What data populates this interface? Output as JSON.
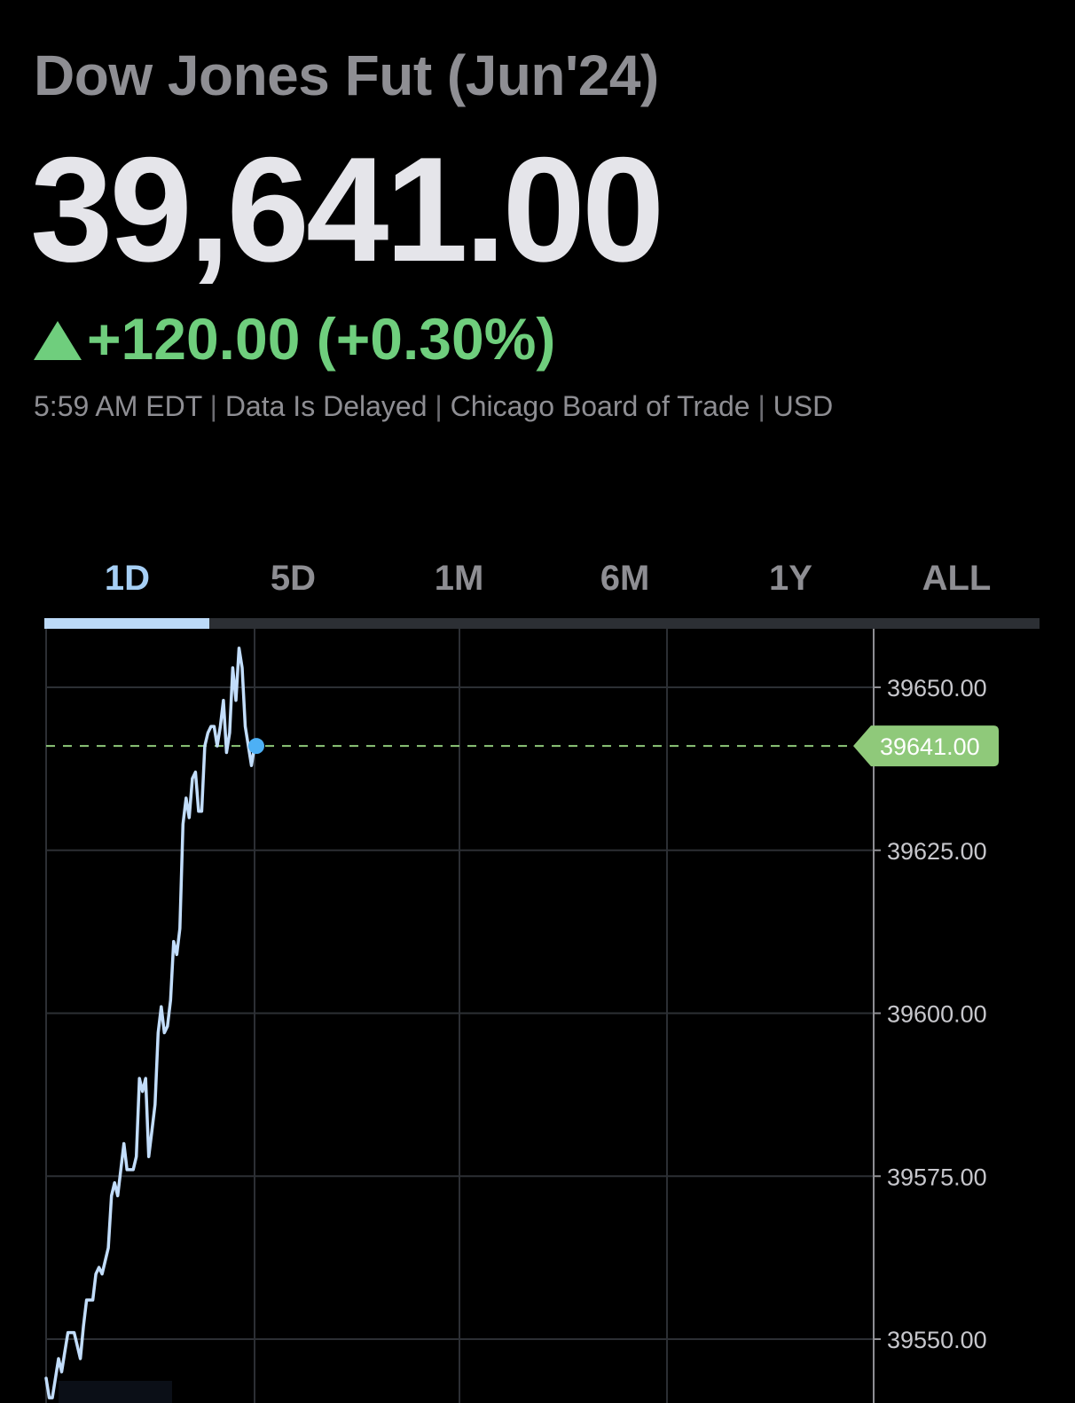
{
  "header": {
    "title": "Dow Jones Fut (Jun'24)",
    "price": "39,641.00",
    "change": "+120.00 (+0.30%)",
    "change_direction_icon": "up-triangle-icon",
    "meta": {
      "time": "5:59 AM EDT",
      "delay": "Data Is Delayed",
      "exchange": "Chicago Board of Trade",
      "currency": "USD",
      "separator": "|"
    }
  },
  "tabs": [
    {
      "label": "1D",
      "active": true
    },
    {
      "label": "5D",
      "active": false
    },
    {
      "label": "1M",
      "active": false
    },
    {
      "label": "6M",
      "active": false
    },
    {
      "label": "1Y",
      "active": false
    },
    {
      "label": "ALL",
      "active": false
    }
  ],
  "colors": {
    "background": "#000000",
    "positive": "#6fce7d",
    "line": "#c2ddfb",
    "active_tab": "#a6cff5",
    "price_tag": "#8fc97a",
    "current_dot": "#4db0f5",
    "grid": "#2c2f34"
  },
  "chart_data": {
    "type": "line",
    "series": [
      {
        "values": [
          39544,
          39541,
          39541,
          39544,
          39547,
          39545,
          39548,
          39551,
          39551,
          39551,
          39549,
          39547,
          39552,
          39556,
          39556,
          39556,
          39560,
          39561,
          39560,
          39562,
          39564,
          39572,
          39574,
          39572,
          39576,
          39580,
          39576,
          39576,
          39576,
          39578,
          39590,
          39588,
          39590,
          39578,
          39582,
          39586,
          39597,
          39601,
          39597,
          39598,
          39602,
          39611,
          39609,
          39613,
          39629,
          39633,
          39630,
          39636,
          39637,
          39631,
          39631,
          39641,
          39643,
          39644,
          39644,
          39641,
          39644,
          39648,
          39640,
          39643,
          39653,
          39648,
          39656,
          39653,
          39644,
          39641,
          39638,
          39641
        ]
      }
    ],
    "current_value": 39641.0,
    "current_label": "39641.00",
    "y_ticks": [
      "39650.00",
      "39625.00",
      "39600.00",
      "39575.00",
      "39550.00"
    ],
    "y_tick_values": [
      39650,
      39625,
      39600,
      39575,
      39550
    ],
    "ylim": [
      39540,
      39659
    ],
    "grid": true,
    "legend": "none"
  }
}
